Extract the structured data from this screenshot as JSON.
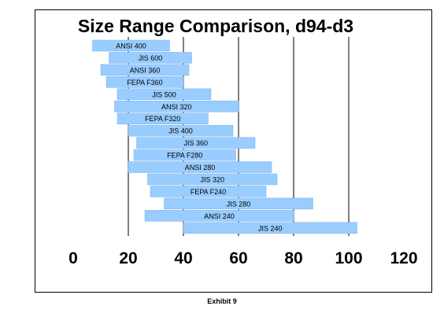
{
  "caption": "Exhibit 9",
  "colors": {
    "bar_fill": "#99ccff",
    "bar_stroke": "#7fb2e6",
    "grid": "#000000",
    "frame": "#000000"
  },
  "chart_data": {
    "type": "bar",
    "orientation": "horizontal-range",
    "title": "Size Range Comparison, d94-d3",
    "xlabel": "",
    "ylabel": "",
    "xlim": [
      0,
      120
    ],
    "xticks": [
      "0",
      "20",
      "40",
      "60",
      "80",
      "100",
      "120"
    ],
    "grid": "vertical major gridlines",
    "legend": "none",
    "series": [
      {
        "label": "ANSI 400",
        "start": 7,
        "end": 35
      },
      {
        "label": "JIS 600",
        "start": 13,
        "end": 43
      },
      {
        "label": "ANSI 360",
        "start": 10,
        "end": 42
      },
      {
        "label": "FEPA F360",
        "start": 12,
        "end": 40
      },
      {
        "label": "JIS 500",
        "start": 16,
        "end": 50
      },
      {
        "label": "ANSI 320",
        "start": 15,
        "end": 60
      },
      {
        "label": "FEPA F320",
        "start": 16,
        "end": 49
      },
      {
        "label": "JIS 400",
        "start": 20,
        "end": 58
      },
      {
        "label": "JIS 360",
        "start": 23,
        "end": 66
      },
      {
        "label": "FEPA F280",
        "start": 22,
        "end": 59
      },
      {
        "label": "ANSI 280",
        "start": 20,
        "end": 72
      },
      {
        "label": "JIS 320",
        "start": 27,
        "end": 74
      },
      {
        "label": "FEPA F240",
        "start": 28,
        "end": 70
      },
      {
        "label": "JIS 280",
        "start": 33,
        "end": 87
      },
      {
        "label": "ANSI 240",
        "start": 26,
        "end": 80
      },
      {
        "label": "JIS 240",
        "start": 40,
        "end": 103
      }
    ]
  }
}
